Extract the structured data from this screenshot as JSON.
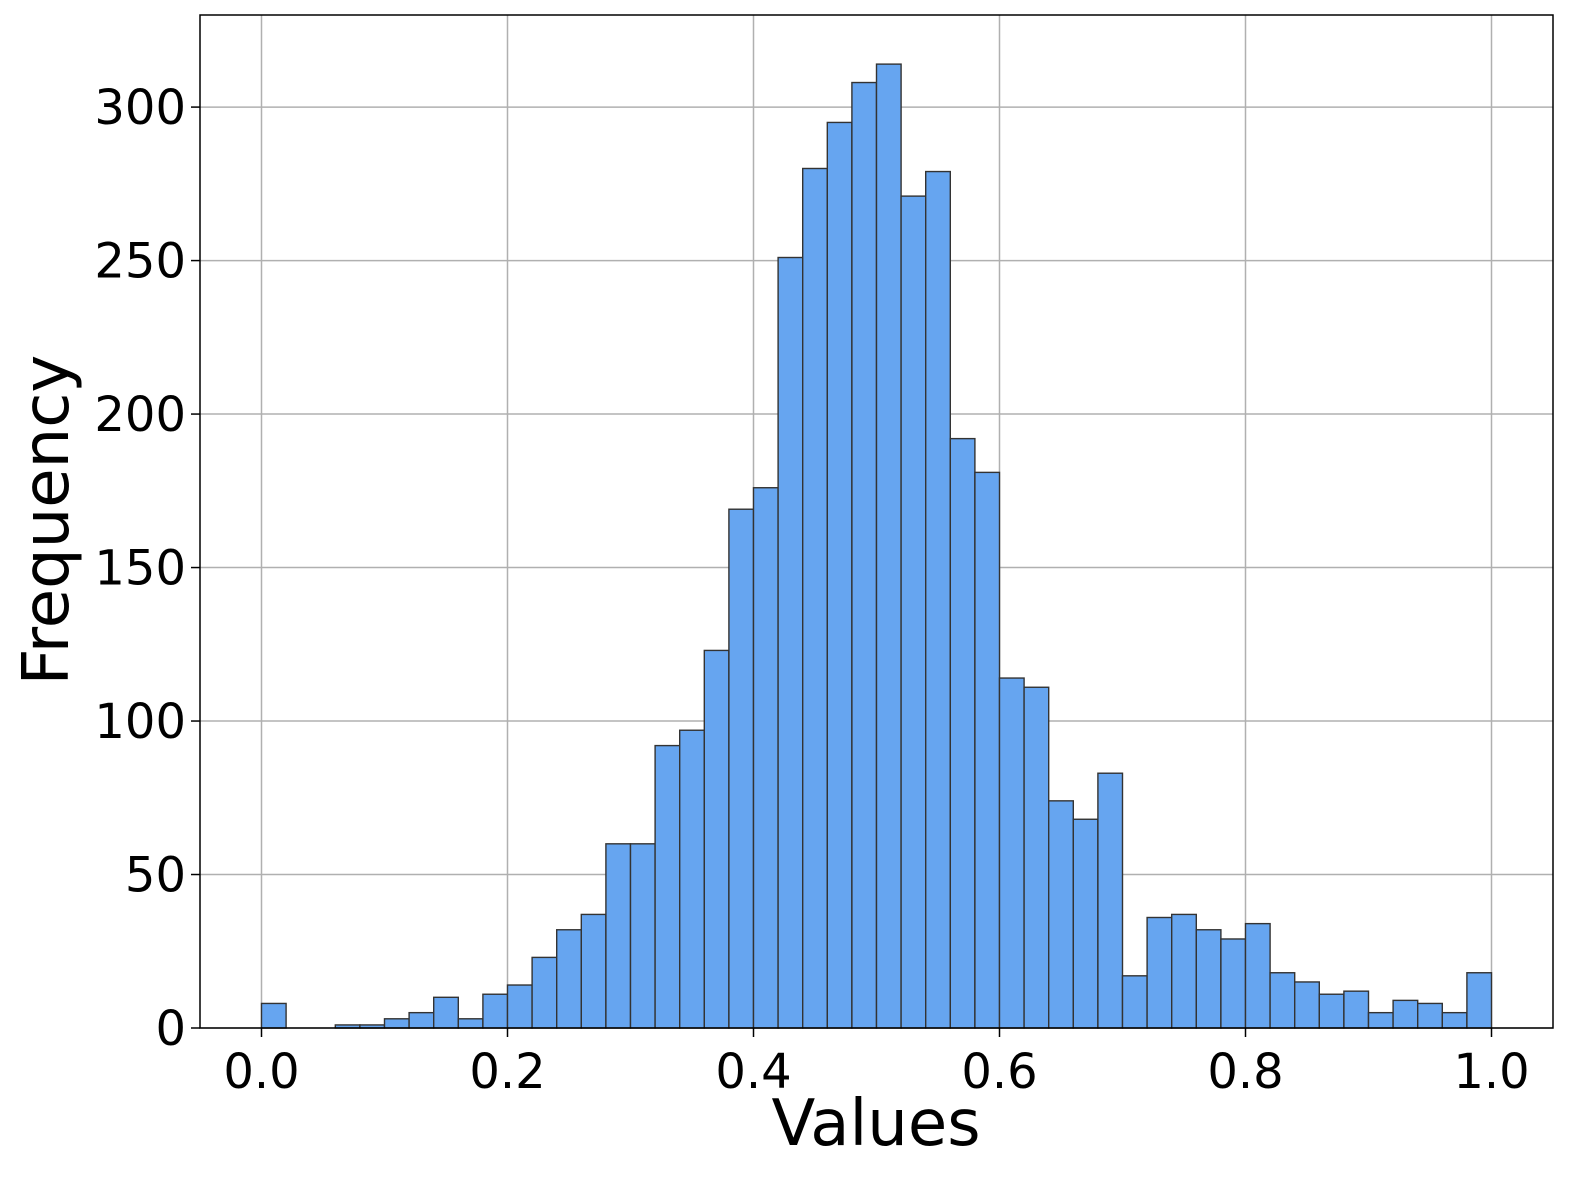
{
  "chart_data": {
    "type": "bar",
    "subtype": "histogram",
    "title": "",
    "xlabel": "Values",
    "ylabel": "Frequency",
    "xlim": [
      -0.05,
      1.05
    ],
    "ylim": [
      0,
      330
    ],
    "grid": true,
    "bin_width": 0.02,
    "bin_starts": [
      0.0,
      0.02,
      0.04,
      0.06,
      0.08,
      0.1,
      0.12,
      0.14,
      0.16,
      0.18,
      0.2,
      0.22,
      0.24,
      0.26,
      0.28,
      0.3,
      0.32,
      0.34,
      0.36,
      0.38,
      0.4,
      0.42,
      0.44,
      0.46,
      0.48,
      0.5,
      0.52,
      0.54,
      0.56,
      0.58,
      0.6,
      0.62,
      0.64,
      0.66,
      0.68,
      0.7,
      0.72,
      0.74,
      0.76,
      0.78,
      0.8,
      0.82,
      0.84,
      0.86,
      0.88,
      0.9,
      0.92,
      0.94,
      0.96,
      0.98
    ],
    "values": [
      8,
      0,
      0,
      1,
      1,
      3,
      5,
      10,
      3,
      11,
      14,
      23,
      32,
      37,
      60,
      60,
      92,
      97,
      123,
      169,
      176,
      251,
      280,
      295,
      308,
      314,
      271,
      279,
      192,
      181,
      114,
      111,
      74,
      68,
      83,
      17,
      36,
      37,
      32,
      29,
      34,
      18,
      15,
      11,
      12,
      5,
      9,
      8,
      5,
      18
    ],
    "bar_color": "#66a5f0",
    "edge_color": "#333333",
    "grid_color": "#b0b0b0",
    "x_ticks": [
      0.0,
      0.2,
      0.4,
      0.6,
      0.8,
      1.0
    ],
    "x_tick_labels": [
      "0.0",
      "0.2",
      "0.4",
      "0.6",
      "0.8",
      "1.0"
    ],
    "y_ticks": [
      0,
      50,
      100,
      150,
      200,
      250,
      300
    ],
    "y_tick_labels": [
      "0",
      "50",
      "100",
      "150",
      "200",
      "250",
      "300"
    ]
  }
}
